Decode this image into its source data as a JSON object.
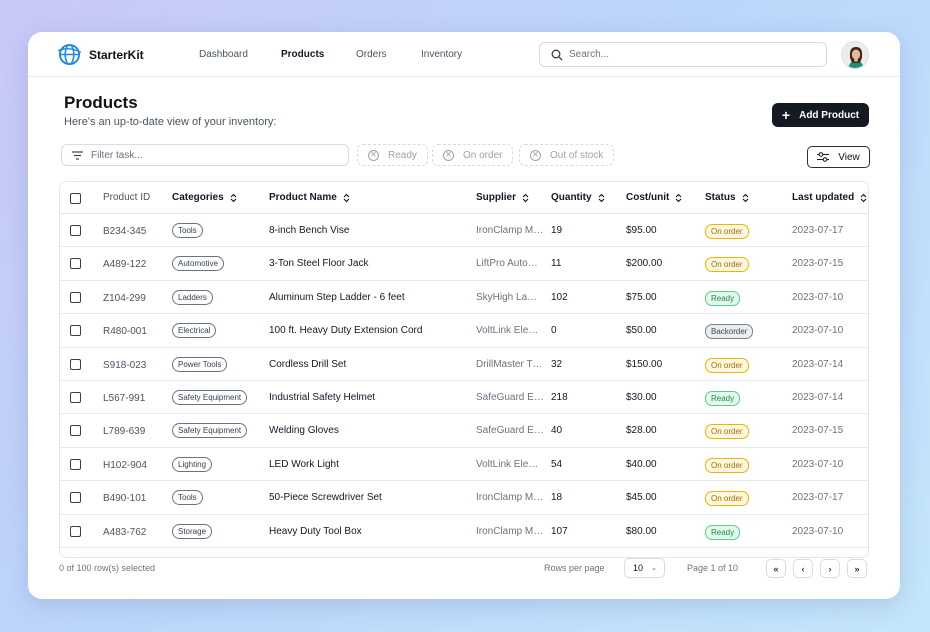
{
  "app": {
    "name": "StarterKit"
  },
  "nav": [
    {
      "label": "Dashboard",
      "active": false
    },
    {
      "label": "Products",
      "active": true
    },
    {
      "label": "Orders",
      "active": false
    },
    {
      "label": "Inventory",
      "active": false
    }
  ],
  "search": {
    "placeholder": "Search..."
  },
  "page": {
    "title": "Products",
    "subtitle": "Here's an up-to-date view of your inventory:",
    "add_button": "Add Product"
  },
  "filters": {
    "task_placeholder": "Filter task...",
    "facets": [
      "Ready",
      "On order",
      "Out of stock"
    ],
    "view_button": "View"
  },
  "table": {
    "columns": [
      "Product ID",
      "Categories",
      "Product Name",
      "Supplier",
      "Quantity",
      "Cost/unit",
      "Status",
      "Last updated"
    ],
    "rows": [
      {
        "id": "B234-345",
        "category": "Tools",
        "name": "8-inch Bench Vise",
        "supplier": "IronClamp M…",
        "qty": "19",
        "cost": "$95.00",
        "status": "On order",
        "updated": "2023-07-17"
      },
      {
        "id": "A489-122",
        "category": "Automotive",
        "name": "3-Ton Steel Floor Jack",
        "supplier": "LiftPro Auto…",
        "qty": "11",
        "cost": "$200.00",
        "status": "On order",
        "updated": "2023-07-15"
      },
      {
        "id": "Z104-299",
        "category": "Ladders",
        "name": "Aluminum Step Ladder - 6 feet",
        "supplier": "SkyHigh La…",
        "qty": "102",
        "cost": "$75.00",
        "status": "Ready",
        "updated": "2023-07-10"
      },
      {
        "id": "R480-001",
        "category": "Electrical",
        "name": "100 ft. Heavy Duty Extension Cord",
        "supplier": "VoltLink Ele…",
        "qty": "0",
        "cost": "$50.00",
        "status": "Backorder",
        "updated": "2023-07-10"
      },
      {
        "id": "S918-023",
        "category": "Power Tools",
        "name": "Cordless Drill Set",
        "supplier": "DrillMaster T…",
        "qty": "32",
        "cost": "$150.00",
        "status": "On order",
        "updated": "2023-07-14"
      },
      {
        "id": "L567-991",
        "category": "Safety Equipment",
        "name": "Industrial Safety Helmet",
        "supplier": "SafeGuard E…",
        "qty": "218",
        "cost": "$30.00",
        "status": "Ready",
        "updated": "2023-07-14"
      },
      {
        "id": "L789-639",
        "category": "Safety Equipment",
        "name": "Welding Gloves",
        "supplier": "SafeGuard E…",
        "qty": "40",
        "cost": "$28.00",
        "status": "On order",
        "updated": "2023-07-15"
      },
      {
        "id": "H102-904",
        "category": "Lighting",
        "name": "LED Work Light",
        "supplier": "VoltLink Ele…",
        "qty": "54",
        "cost": "$40.00",
        "status": "On order",
        "updated": "2023-07-10"
      },
      {
        "id": "B490-101",
        "category": "Tools",
        "name": "50-Piece Screwdriver Set",
        "supplier": "IronClamp M…",
        "qty": "18",
        "cost": "$45.00",
        "status": "On order",
        "updated": "2023-07-17"
      },
      {
        "id": "A483-762",
        "category": "Storage",
        "name": "Heavy Duty Tool Box",
        "supplier": "IronClamp M…",
        "qty": "107",
        "cost": "$80.00",
        "status": "Ready",
        "updated": "2023-07-10"
      }
    ]
  },
  "footer": {
    "selection": "0 of 100 row(s) selected",
    "rows_per_page_label": "Rows per page",
    "rows_per_page_value": "10",
    "page_label": "Page 1 of 10",
    "pager_buttons": [
      "«",
      "‹",
      "›",
      "»"
    ]
  },
  "colors": {
    "primary_button": "#151a22",
    "status_on_order": "#f0b400",
    "status_ready": "#5ccb8d",
    "status_backorder": "#7b818a",
    "logo_blue": "#1e88e5"
  },
  "icons": [
    "globe-logo-icon",
    "search-icon",
    "filter-lines-icon",
    "circle-x-icon",
    "sliders-icon",
    "sort-icon",
    "plus-icon"
  ]
}
